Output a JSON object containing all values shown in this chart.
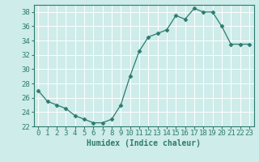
{
  "x": [
    0,
    1,
    2,
    3,
    4,
    5,
    6,
    7,
    8,
    9,
    10,
    11,
    12,
    13,
    14,
    15,
    16,
    17,
    18,
    19,
    20,
    21,
    22,
    23
  ],
  "y": [
    27,
    25.5,
    25,
    24.5,
    23.5,
    23,
    22.5,
    22.5,
    23,
    25,
    29,
    32.5,
    34.5,
    35,
    35.5,
    37.5,
    37,
    38.5,
    38,
    38,
    36,
    33.5,
    33.5,
    33.5
  ],
  "line_color": "#2d7b6e",
  "marker": "D",
  "marker_size": 2.5,
  "bg_color": "#ceecea",
  "grid_color": "#ffffff",
  "tick_color": "#2d7b6e",
  "xlabel": "Humidex (Indice chaleur)",
  "ylim": [
    22,
    39
  ],
  "xlim": [
    -0.5,
    23.5
  ],
  "yticks": [
    22,
    24,
    26,
    28,
    30,
    32,
    34,
    36,
    38
  ],
  "xticks": [
    0,
    1,
    2,
    3,
    4,
    5,
    6,
    7,
    8,
    9,
    10,
    11,
    12,
    13,
    14,
    15,
    16,
    17,
    18,
    19,
    20,
    21,
    22,
    23
  ],
  "xlabel_fontsize": 7,
  "tick_fontsize": 6.5
}
